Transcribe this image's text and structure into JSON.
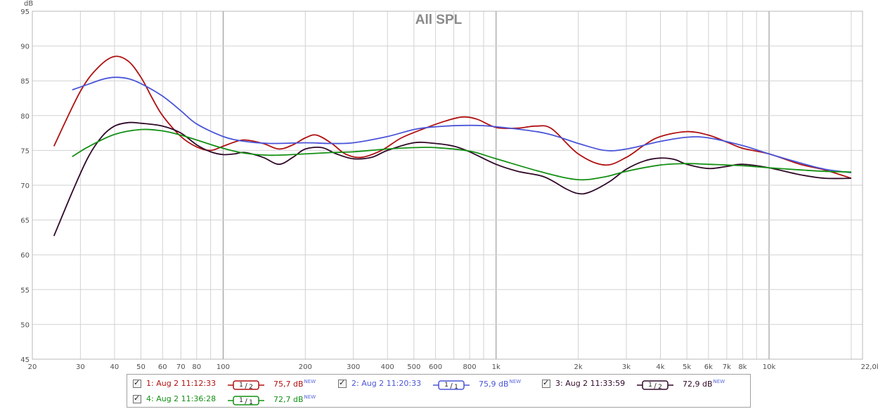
{
  "chart_data": {
    "type": "line",
    "title": "All SPL",
    "ylabel": "dB",
    "xlabel": "",
    "x_scale": "log",
    "xlim": [
      20,
      22000
    ],
    "ylim": [
      45,
      95
    ],
    "y_ticks": [
      45,
      50,
      55,
      60,
      65,
      70,
      75,
      80,
      85,
      90,
      95
    ],
    "x_ticks": [
      {
        "v": 20,
        "label": "20"
      },
      {
        "v": 30,
        "label": "30"
      },
      {
        "v": 40,
        "label": "40"
      },
      {
        "v": 50,
        "label": "50"
      },
      {
        "v": 60,
        "label": "60"
      },
      {
        "v": 70,
        "label": "70"
      },
      {
        "v": 80,
        "label": "80"
      },
      {
        "v": 100,
        "label": "100"
      },
      {
        "v": 200,
        "label": "200"
      },
      {
        "v": 300,
        "label": "300"
      },
      {
        "v": 400,
        "label": "400"
      },
      {
        "v": 500,
        "label": "500"
      },
      {
        "v": 600,
        "label": "600"
      },
      {
        "v": 800,
        "label": "800"
      },
      {
        "v": 1000,
        "label": "1k"
      },
      {
        "v": 2000,
        "label": "2k"
      },
      {
        "v": 3000,
        "label": "3k"
      },
      {
        "v": 4000,
        "label": "4k"
      },
      {
        "v": 5000,
        "label": "5k"
      },
      {
        "v": 6000,
        "label": "6k"
      },
      {
        "v": 7000,
        "label": "7k"
      },
      {
        "v": 8000,
        "label": "8k"
      },
      {
        "v": 10000,
        "label": "10k"
      },
      {
        "v": 22000,
        "label": "22,0kHz"
      }
    ],
    "grid": true,
    "series": [
      {
        "name": "1: Aug 2 11:12:33",
        "color": "#b01010",
        "x": [
          24,
          30,
          35,
          40,
          45,
          50,
          55,
          60,
          70,
          80,
          90,
          100,
          110,
          120,
          140,
          160,
          180,
          200,
          220,
          250,
          280,
          320,
          380,
          450,
          550,
          650,
          750,
          850,
          1000,
          1200,
          1400,
          1600,
          2000,
          2500,
          3000,
          3500,
          4000,
          5000,
          6000,
          7000,
          8000,
          10000,
          13000,
          16000,
          20000
        ],
        "values": [
          75.6,
          83.5,
          87.0,
          88.5,
          87.8,
          85.5,
          82.5,
          80.0,
          77.0,
          75.5,
          75.0,
          75.6,
          76.2,
          76.5,
          76.0,
          75.2,
          75.8,
          76.8,
          77.2,
          76.0,
          74.5,
          74.0,
          75.0,
          76.8,
          78.2,
          79.2,
          79.8,
          79.5,
          78.3,
          78.2,
          78.5,
          78.1,
          74.5,
          72.9,
          74.0,
          75.8,
          77.0,
          77.7,
          77.2,
          76.2,
          75.3,
          74.5,
          73.0,
          72.2,
          71.0
        ]
      },
      {
        "name": "2: Aug 2 11:20:33",
        "color": "#4a55d8",
        "x": [
          28,
          32,
          36,
          40,
          45,
          50,
          60,
          70,
          80,
          100,
          120,
          150,
          200,
          250,
          300,
          400,
          500,
          600,
          800,
          1000,
          1500,
          2000,
          2500,
          3000,
          4000,
          5000,
          6000,
          8000,
          10000,
          13000,
          16000,
          20000
        ],
        "values": [
          83.7,
          84.5,
          85.2,
          85.5,
          85.3,
          84.6,
          82.8,
          80.7,
          78.8,
          77.0,
          76.3,
          76.0,
          76.1,
          76.0,
          76.1,
          77.0,
          78.0,
          78.4,
          78.6,
          78.4,
          77.5,
          76.0,
          75.0,
          75.2,
          76.3,
          76.9,
          76.8,
          75.7,
          74.5,
          73.2,
          72.3,
          71.8
        ]
      },
      {
        "name": "3: Aug 2 11:33:59",
        "color": "#300828",
        "x": [
          24,
          28,
          32,
          36,
          40,
          45,
          50,
          60,
          70,
          80,
          90,
          100,
          110,
          120,
          140,
          160,
          180,
          200,
          230,
          260,
          300,
          350,
          400,
          500,
          600,
          700,
          800,
          1000,
          1200,
          1500,
          1800,
          2000,
          2200,
          2600,
          3000,
          3500,
          4000,
          4500,
          5000,
          6000,
          7000,
          8000,
          10000,
          13000,
          16000,
          20000
        ],
        "values": [
          62.7,
          69.0,
          74.0,
          77.0,
          78.5,
          79.0,
          78.9,
          78.5,
          77.5,
          75.8,
          74.8,
          74.4,
          74.5,
          74.7,
          74.0,
          73.0,
          74.0,
          75.2,
          75.4,
          74.5,
          73.8,
          74.0,
          75.0,
          76.1,
          76.0,
          75.6,
          74.8,
          73.0,
          72.0,
          71.2,
          69.5,
          68.8,
          69.0,
          70.5,
          72.3,
          73.5,
          73.9,
          73.7,
          73.0,
          72.4,
          72.7,
          73.0,
          72.5,
          71.5,
          71.0,
          71.0
        ]
      },
      {
        "name": "4: Aug 2 11:36:28",
        "color": "#149014",
        "x": [
          28,
          32,
          40,
          50,
          60,
          70,
          80,
          100,
          120,
          150,
          200,
          250,
          300,
          400,
          500,
          600,
          800,
          1000,
          1500,
          2000,
          2500,
          3000,
          4000,
          5000,
          6000,
          8000,
          10000,
          13000,
          16000,
          20000
        ],
        "values": [
          74.1,
          75.5,
          77.3,
          78.0,
          77.8,
          77.2,
          76.5,
          75.3,
          74.6,
          74.3,
          74.5,
          74.7,
          74.8,
          75.2,
          75.4,
          75.4,
          74.9,
          73.8,
          71.8,
          70.8,
          71.2,
          72.0,
          72.9,
          73.1,
          73.0,
          72.8,
          72.5,
          72.2,
          72.0,
          71.9
        ]
      }
    ]
  },
  "legend": [
    {
      "label": "1: Aug 2 11:12:33",
      "smoothing": "1/2",
      "value": "75,7 dB",
      "badge": "NEW",
      "color": "#b01010"
    },
    {
      "label": "2: Aug 2 11:20:33",
      "smoothing": "1/1",
      "value": "75,9 dB",
      "badge": "NEW",
      "color": "#4a55d8"
    },
    {
      "label": "3: Aug 2 11:33:59",
      "smoothing": "1/2",
      "value": "72,9 dB",
      "badge": "NEW",
      "color": "#300828"
    },
    {
      "label": "4: Aug 2 11:36:28",
      "smoothing": "1/1",
      "value": "72,7 dB",
      "badge": "NEW",
      "color": "#149014"
    }
  ]
}
